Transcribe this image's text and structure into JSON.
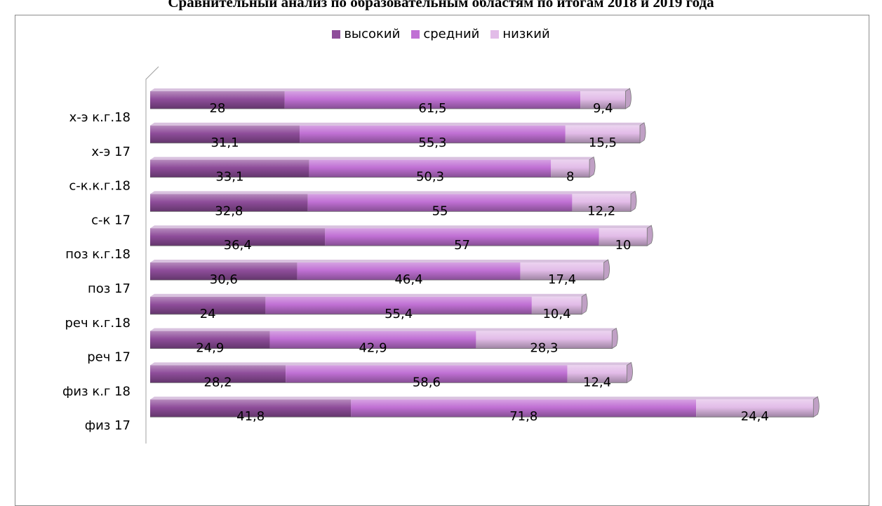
{
  "title": "Сравнительный анализ по образовательным областям по итогам 2018 и 2019 года",
  "chart_data": {
    "type": "bar",
    "orientation": "horizontal",
    "stacked": true,
    "categories": [
      "х-э к.г.18",
      "х-э 17",
      "с-к.к.г.18",
      "с-к 17",
      "поз к.г.18",
      "поз 17",
      "реч к.г.18",
      "реч 17",
      "физ к.г 18",
      "физ 17"
    ],
    "series": [
      {
        "name": "высокий",
        "color": "#8e4d9a",
        "values": [
          28,
          31.1,
          33.1,
          32.8,
          36.4,
          30.6,
          24,
          24.9,
          28.2,
          41.8
        ],
        "labels": [
          "28",
          "31,1",
          "33,1",
          "32,8",
          "36,4",
          "30,6",
          "24",
          "24,9",
          "28,2",
          "41,8"
        ]
      },
      {
        "name": "средний",
        "color": "#c070d4",
        "values": [
          61.5,
          55.3,
          50.3,
          55,
          57,
          46.4,
          55.4,
          42.9,
          58.6,
          71.8
        ],
        "labels": [
          "61,5",
          "55,3",
          "50,3",
          "55",
          "57",
          "46,4",
          "55,4",
          "42,9",
          "58,6",
          "71,8"
        ]
      },
      {
        "name": "низкий",
        "color": "#e2bce8",
        "values": [
          9.4,
          15.5,
          8,
          12.2,
          10,
          17.4,
          10.4,
          28.3,
          12.4,
          24.4
        ],
        "labels": [
          "9,4",
          "15,5",
          "8",
          "12,2",
          "10",
          "17,4",
          "10,4",
          "28,3",
          "12,4",
          "24,4"
        ]
      }
    ],
    "legend_position": "top",
    "grid": false
  }
}
